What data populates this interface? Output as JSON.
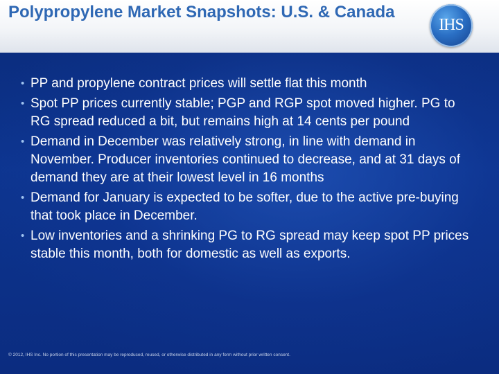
{
  "slide": {
    "title": "Polypropylene Market Snapshots:  U.S. & Canada",
    "logo_text": "IHS",
    "bullets": [
      "PP and propylene contract prices will settle flat this month",
      "Spot PP prices currently stable; PGP and RGP spot moved higher. PG to RG spread reduced a bit, but remains high at 14 cents per pound",
      "Demand in December was relatively strong, in line with demand in November.  Producer inventories continued to decrease, and at 31 days of demand they are at their lowest level in 16 months",
      "Demand for January is expected to be softer, due to the active pre-buying that took place in December.",
      "Low inventories and a shrinking PG to RG spread may keep spot PP prices stable this month, both for domestic as well as exports."
    ],
    "bullet_glyph": "•",
    "footer": "© 2012, IHS Inc. No portion of this presentation may be reproduced, reused, or otherwise distributed in any form without prior written consent."
  },
  "colors": {
    "title": "#2f68b4",
    "background": "#0c2d78",
    "text": "#ffffff"
  }
}
